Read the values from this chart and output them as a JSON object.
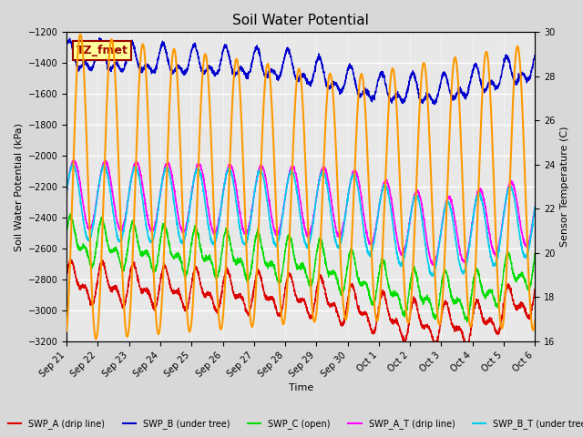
{
  "title": "Soil Water Potential",
  "xlabel": "Time",
  "ylabel_left": "Soil Water Potential (kPa)",
  "ylabel_right": "Sensor Temperature (C)",
  "ylim_left": [
    -3200,
    -1200
  ],
  "ylim_right": [
    16,
    30
  ],
  "yticks_left": [
    -3200,
    -3000,
    -2800,
    -2600,
    -2400,
    -2200,
    -2000,
    -1800,
    -1600,
    -1400,
    -1200
  ],
  "yticks_right": [
    16,
    18,
    20,
    22,
    24,
    26,
    28,
    30
  ],
  "fig_bg_color": "#d8d8d8",
  "plot_bg_color": "#e8e8e8",
  "line_colors": {
    "SWP_B": "#0000cc",
    "SWP_C": "#00dd00",
    "SWP_A": "#dd0000",
    "SWP_A_T": "#ff00ff",
    "SWP_B_T": "#00ccee",
    "SWP_temp": "#ff9900"
  },
  "annotation_text": "TZ_fmet",
  "annotation_color": "#990000",
  "annotation_bg": "#ffff99",
  "xticklabels": [
    "Sep 21",
    "Sep 22",
    "Sep 23",
    "Sep 24",
    "Sep 25",
    "Sep 26",
    "Sep 27",
    "Sep 28",
    "Sep 29",
    "Sep 30",
    "Oct 1",
    "Oct 2",
    "Oct 3",
    "Oct 4",
    "Oct 5",
    "Oct 6"
  ]
}
